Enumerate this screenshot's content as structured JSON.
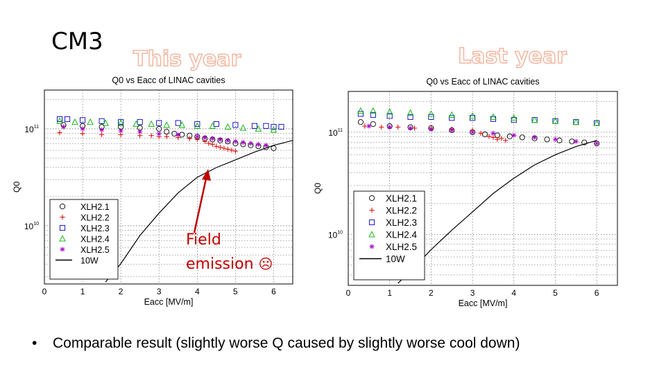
{
  "slide": {
    "title": "CM3",
    "left_label": "This year",
    "right_label": "Last year",
    "bullet": "Comparable result (slightly worse Q caused by slightly worse cool down)",
    "bullet_marker": "•",
    "annotation_line1": "Field",
    "annotation_line2": "emission",
    "annotation_emoji": "☹",
    "colors": {
      "annotation": "#c00000",
      "year_outline": "#f2b79f"
    }
  },
  "chart_data": [
    {
      "type": "scatter",
      "title": "Q0 vs Eacc of LINAC cavities",
      "xlabel": "Eacc [MV/m]",
      "ylabel": "Q0",
      "xlim": [
        0,
        6.5
      ],
      "ylim_log10": [
        9.4,
        11.4
      ],
      "xticks": [
        "0",
        "1",
        "2",
        "3",
        "4",
        "5",
        "6"
      ],
      "yticks": [
        {
          "exp": 10,
          "label": "10",
          "sup": "10"
        },
        {
          "exp": 11,
          "label": "10",
          "sup": "11"
        }
      ],
      "legend": "bottom-left",
      "series": [
        {
          "name": "XLH2.1",
          "marker": "circle",
          "color": "#000000",
          "x": [
            0.5,
            1.0,
            1.5,
            2.0,
            2.5,
            3.0,
            3.2,
            3.4,
            3.6,
            3.8,
            4.0,
            4.2,
            4.4,
            4.6,
            4.8,
            5.0,
            5.2,
            5.4,
            5.6,
            5.8,
            6.0
          ],
          "log10": [
            11.04,
            11.03,
            11.02,
            11.02,
            11.01,
            11.0,
            10.97,
            10.95,
            10.94,
            10.93,
            10.92,
            10.9,
            10.89,
            10.88,
            10.87,
            10.85,
            10.84,
            10.83,
            10.82,
            10.81,
            10.8
          ]
        },
        {
          "name": "XLH2.2",
          "marker": "plus",
          "color": "#e00000",
          "x": [
            0.4,
            1.0,
            1.5,
            2.0,
            2.5,
            2.8,
            3.0,
            3.2,
            3.5,
            3.8,
            4.0,
            4.2,
            4.3,
            4.4,
            4.5,
            4.6,
            4.7,
            4.8,
            4.9,
            5.0
          ],
          "log10": [
            10.96,
            10.95,
            10.94,
            10.94,
            10.93,
            10.93,
            10.92,
            10.92,
            10.91,
            10.9,
            10.89,
            10.87,
            10.85,
            10.84,
            10.82,
            10.81,
            10.8,
            10.79,
            10.78,
            10.77
          ]
        },
        {
          "name": "XLH2.3",
          "marker": "square",
          "color": "#0000c0",
          "x": [
            0.4,
            0.6,
            1.0,
            1.5,
            2.0,
            2.5,
            3.0,
            3.5,
            4.0,
            4.5,
            5.0,
            5.5,
            5.8,
            6.0,
            6.2
          ],
          "log10": [
            11.1,
            11.1,
            11.09,
            11.08,
            11.07,
            11.07,
            11.06,
            11.06,
            11.05,
            11.05,
            11.04,
            11.03,
            11.03,
            11.02,
            11.02
          ]
        },
        {
          "name": "XLH2.4",
          "marker": "triangle",
          "color": "#00b000",
          "x": [
            0.4,
            0.8,
            1.2,
            1.6,
            2.0,
            2.4,
            2.8,
            3.2,
            3.6,
            4.0,
            4.4,
            4.8,
            5.2,
            5.6,
            6.0
          ],
          "log10": [
            11.08,
            11.07,
            11.07,
            11.06,
            11.06,
            11.05,
            11.05,
            11.04,
            11.04,
            11.03,
            11.03,
            11.02,
            11.01,
            11.0,
            10.99
          ]
        },
        {
          "name": "XLH2.5",
          "marker": "star",
          "color": "#a000c0",
          "x": [
            0.5,
            1.0,
            1.5,
            2.0,
            2.5,
            3.0,
            3.5,
            4.0,
            4.2,
            4.4,
            4.6,
            4.8,
            5.0,
            5.2,
            5.4,
            5.6,
            5.8
          ],
          "log10": [
            11.02,
            11.0,
            10.99,
            10.98,
            10.97,
            10.95,
            10.94,
            10.92,
            10.91,
            10.9,
            10.89,
            10.88,
            10.87,
            10.86,
            10.85,
            10.84,
            10.83
          ]
        },
        {
          "name": "10W",
          "marker": "line",
          "color": "#000000",
          "x": [
            1.6,
            2.0,
            2.5,
            3.0,
            3.5,
            4.0,
            4.5,
            5.0,
            5.5,
            6.0,
            6.5
          ],
          "log10": [
            9.42,
            9.61,
            9.9,
            10.13,
            10.34,
            10.5,
            10.6,
            10.68,
            10.76,
            10.83,
            10.88
          ]
        }
      ]
    },
    {
      "type": "scatter",
      "title": "Q0 vs Eacc of LINAC cavities",
      "xlabel": "Eacc [MV/m]",
      "ylabel": "Q0",
      "xlim": [
        0,
        6.5
      ],
      "ylim_log10": [
        9.5,
        11.4
      ],
      "xticks": [
        "0",
        "1",
        "2",
        "3",
        "4",
        "5",
        "6"
      ],
      "yticks": [
        {
          "exp": 10,
          "label": "10",
          "sup": "10"
        },
        {
          "exp": 11,
          "label": "10",
          "sup": "11"
        }
      ],
      "legend": "bottom-left",
      "series": [
        {
          "name": "XLH2.1",
          "marker": "circle",
          "color": "#000000",
          "x": [
            0.3,
            0.6,
            1.0,
            1.5,
            2.0,
            2.5,
            3.0,
            3.3,
            3.6,
            3.9,
            4.2,
            4.5,
            4.8,
            5.1,
            5.4,
            5.7,
            6.0
          ],
          "log10": [
            11.1,
            11.08,
            11.06,
            11.05,
            11.04,
            11.02,
            11.0,
            10.98,
            10.97,
            10.96,
            10.95,
            10.94,
            10.93,
            10.92,
            10.91,
            10.9,
            10.89
          ]
        },
        {
          "name": "XLH2.2",
          "marker": "plus",
          "color": "#e00000",
          "x": [
            0.4,
            0.8,
            1.2,
            1.6,
            2.0,
            2.5,
            3.0,
            3.2,
            3.4,
            3.5,
            3.6,
            3.7,
            3.8
          ],
          "log10": [
            11.06,
            11.05,
            11.05,
            11.04,
            11.04,
            11.03,
            11.02,
            10.99,
            10.96,
            10.95,
            10.93,
            10.94,
            10.92
          ]
        },
        {
          "name": "XLH2.3",
          "marker": "square",
          "color": "#0000c0",
          "x": [
            0.3,
            0.6,
            1.0,
            1.5,
            2.0,
            2.5,
            3.0,
            3.5,
            4.0,
            4.5,
            5.0,
            5.5,
            6.0
          ],
          "log10": [
            11.18,
            11.17,
            11.16,
            11.15,
            11.15,
            11.14,
            11.14,
            11.13,
            11.12,
            11.12,
            11.11,
            11.1,
            11.09
          ]
        },
        {
          "name": "XLH2.4",
          "marker": "triangle",
          "color": "#00b000",
          "x": [
            0.3,
            0.6,
            1.0,
            1.5,
            2.0,
            2.5,
            3.0,
            3.5,
            4.0,
            4.5,
            5.0,
            5.5,
            6.0
          ],
          "log10": [
            11.21,
            11.21,
            11.2,
            11.19,
            11.18,
            11.17,
            11.16,
            11.15,
            11.14,
            11.12,
            11.11,
            11.1,
            11.09
          ]
        },
        {
          "name": "XLH2.5",
          "marker": "star",
          "color": "#a000c0",
          "x": [
            0.5,
            1.0,
            1.5,
            2.0,
            2.5,
            3.0,
            3.5,
            4.0,
            4.5,
            5.0,
            5.5,
            6.0
          ],
          "log10": [
            11.06,
            11.05,
            11.04,
            11.03,
            11.02,
            11.0,
            10.99,
            10.97,
            10.95,
            10.93,
            10.91,
            10.89
          ]
        },
        {
          "name": "10W",
          "marker": "line",
          "color": "#000000",
          "x": [
            1.2,
            1.6,
            2.0,
            2.5,
            3.0,
            3.5,
            4.0,
            4.5,
            5.0,
            5.5,
            6.0
          ],
          "log10": [
            9.52,
            9.68,
            9.85,
            10.04,
            10.22,
            10.4,
            10.55,
            10.68,
            10.78,
            10.86,
            10.92
          ]
        }
      ]
    }
  ]
}
